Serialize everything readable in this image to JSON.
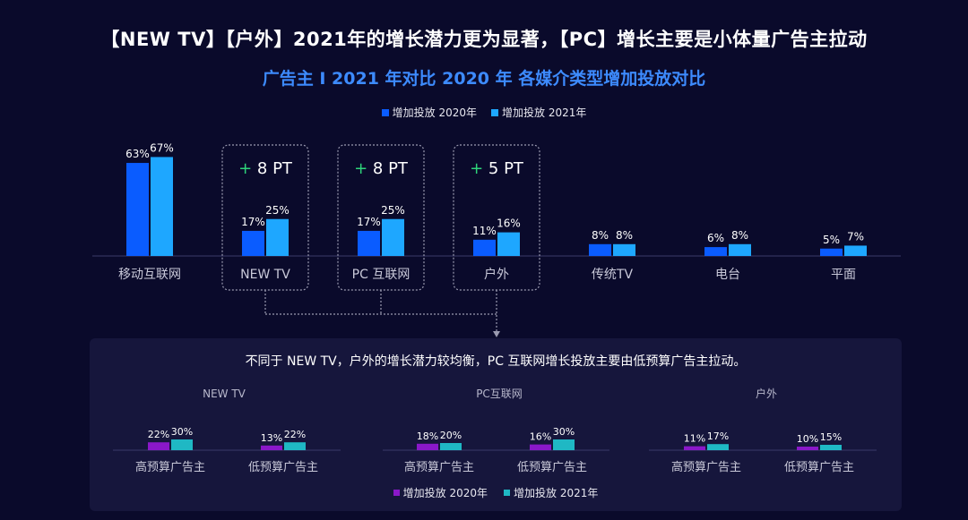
{
  "title": "【NEW TV】【户外】2021年的增长潜力更为显著，【PC】增长主要是小体量广告主拉动",
  "subtitle": "广告主 I 2021 年对比 2020 年 各媒介类型增加投放对比",
  "colors": {
    "s2020": "#0a5cff",
    "s2021": "#1ea7ff",
    "sub2020": "#8a18c9",
    "sub2021": "#1fb8c4",
    "plus": "#2ed47a",
    "bg": "#0a0a2b",
    "panel": "#16163c"
  },
  "chart_data": [
    {
      "type": "bar",
      "categories": [
        "移动互联网",
        "NEW TV",
        "PC 互联网",
        "户外",
        "传统TV",
        "电台",
        "平面"
      ],
      "series": [
        {
          "name": "增加投放 2020年",
          "values": [
            63,
            17,
            17,
            11,
            8,
            6,
            5
          ],
          "labels": [
            "63%",
            "17%",
            "17%",
            "11%",
            "8%",
            "6%",
            "5%"
          ]
        },
        {
          "name": "增加投放 2021年",
          "values": [
            67,
            25,
            25,
            16,
            8,
            8,
            7
          ],
          "labels": [
            "67%",
            "25%",
            "25%",
            "16%",
            "8%",
            "8%",
            "7%"
          ]
        }
      ],
      "annotations": [
        {
          "category": "NEW TV",
          "text_plus": "+",
          "text_value": "8 PT"
        },
        {
          "category": "PC 互联网",
          "text_plus": "+",
          "text_value": "8 PT"
        },
        {
          "category": "户外",
          "text_plus": "+",
          "text_value": "5 PT"
        }
      ],
      "ylim": [
        0,
        70
      ],
      "legend": "top-center",
      "grid": false
    },
    {
      "type": "bar",
      "panel_title": "不同于 NEW TV，户外的增长潜力较均衡，PC 互联网增长投放主要由低预算广告主拉动。",
      "groups": [
        {
          "name": "NEW TV",
          "categories": [
            "高预算广告主",
            "低预算广告主"
          ],
          "series": [
            {
              "name": "增加投放 2020年",
              "values": [
                22,
                13
              ],
              "labels": [
                "22%",
                "13%"
              ]
            },
            {
              "name": "增加投放 2021年",
              "values": [
                30,
                22
              ],
              "labels": [
                "30%",
                "22%"
              ]
            }
          ]
        },
        {
          "name": "PC互联网",
          "categories": [
            "高预算广告主",
            "低预算广告主"
          ],
          "series": [
            {
              "name": "增加投放 2020年",
              "values": [
                18,
                16
              ],
              "labels": [
                "18%",
                "16%"
              ]
            },
            {
              "name": "增加投放 2021年",
              "values": [
                20,
                30
              ],
              "labels": [
                "20%",
                "30%"
              ]
            }
          ]
        },
        {
          "name": "户外",
          "categories": [
            "高预算广告主",
            "低预算广告主"
          ],
          "series": [
            {
              "name": "增加投放 2020年",
              "values": [
                11,
                10
              ],
              "labels": [
                "11%",
                "10%"
              ]
            },
            {
              "name": "增加投放 2021年",
              "values": [
                17,
                15
              ],
              "labels": [
                "17%",
                "15%"
              ]
            }
          ]
        }
      ],
      "legend": "bottom-center",
      "grid": false
    }
  ]
}
